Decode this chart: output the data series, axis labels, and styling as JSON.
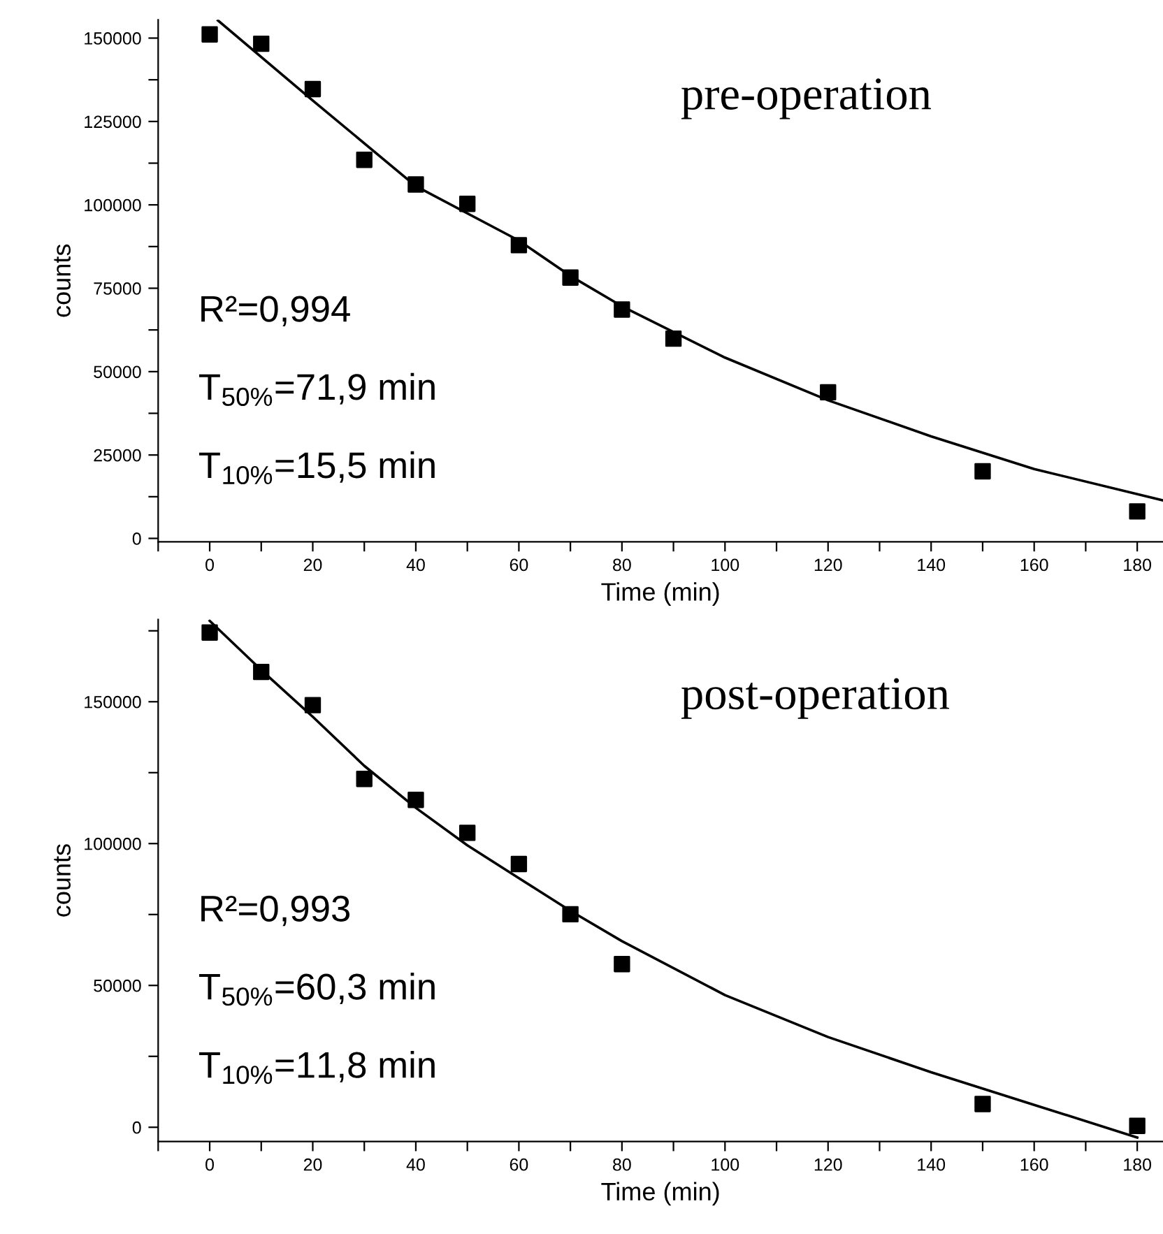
{
  "chart_data": [
    {
      "type": "scatter",
      "xlabel": "Time (min)",
      "ylabel": "counts",
      "xlim": [
        -10,
        185
      ],
      "ylim": [
        -1000,
        155500
      ],
      "xticks": [
        {
          "value": -10,
          "label": null
        },
        0,
        {
          "value": 10,
          "label": null
        },
        20,
        {
          "value": 30,
          "label": null
        },
        40,
        {
          "value": 50,
          "label": null
        },
        60,
        {
          "value": 70,
          "label": null
        },
        80,
        {
          "value": 90,
          "label": null
        },
        100,
        {
          "value": 110,
          "label": null
        },
        120,
        {
          "value": 130,
          "label": null
        },
        140,
        {
          "value": 150,
          "label": null
        },
        160,
        {
          "value": 170,
          "label": null
        },
        180
      ],
      "yticks": [
        0,
        {
          "value": 12500,
          "label": null
        },
        25000,
        {
          "value": 37500,
          "label": null
        },
        50000,
        {
          "value": 62500,
          "label": null
        },
        75000,
        {
          "value": 87500,
          "label": null
        },
        100000,
        {
          "value": 112500,
          "label": null
        },
        125000,
        {
          "value": 137500,
          "label": null
        },
        150000
      ],
      "annotations": [
        "pre-operation",
        "R²=0,994",
        "T$_{50%}$=71,9 min",
        "T$_{10%}$=15,5 min"
      ],
      "series": [
        {
          "marker": "square",
          "color": "#000000",
          "x": [
            0,
            10,
            20,
            30,
            40,
            50,
            60,
            70,
            80,
            90,
            120,
            150,
            180
          ],
          "values": [
            151100,
            148300,
            134700,
            113500,
            106100,
            100300,
            87900,
            78200,
            68600,
            59900,
            43800,
            20100,
            8100
          ]
        },
        {
          "type": "line",
          "marker": "none",
          "line_style": "solid",
          "color": "#000000",
          "x": [
            1.6,
            20,
            40,
            60,
            70,
            80,
            100,
            120,
            140,
            160,
            185
          ],
          "values": [
            155300,
            131300,
            105600,
            89300,
            78700,
            69600,
            54200,
            41400,
            30600,
            20800,
            11400
          ]
        }
      ]
    },
    {
      "type": "scatter",
      "xlabel": "Time (min)",
      "ylabel": "counts",
      "xlim": [
        -10,
        185
      ],
      "ylim": [
        -5000,
        179000
      ],
      "xticks": [
        {
          "value": -10,
          "label": null
        },
        0,
        {
          "value": 10,
          "label": null
        },
        20,
        {
          "value": 30,
          "label": null
        },
        40,
        {
          "value": 50,
          "label": null
        },
        60,
        {
          "value": 70,
          "label": null
        },
        80,
        {
          "value": 90,
          "label": null
        },
        100,
        {
          "value": 110,
          "label": null
        },
        120,
        {
          "value": 130,
          "label": null
        },
        140,
        {
          "value": 150,
          "label": null
        },
        160,
        {
          "value": 170,
          "label": null
        },
        180
      ],
      "yticks": [
        0,
        {
          "value": 25000,
          "label": null
        },
        50000,
        {
          "value": 75000,
          "label": null
        },
        100000,
        {
          "value": 125000,
          "label": null
        },
        150000,
        {
          "value": 175000,
          "label": null
        }
      ],
      "annotations": [
        "post-operation",
        "R²=0,993",
        "T$_{50%}$=60,3 min",
        "T$_{10%}$=11,8 min"
      ],
      "series": [
        {
          "marker": "square",
          "color": "#000000",
          "x": [
            0,
            10,
            20,
            30,
            40,
            50,
            60,
            70,
            80,
            150,
            180
          ],
          "values": [
            174400,
            160500,
            148800,
            122800,
            115400,
            103800,
            92800,
            75100,
            57500,
            8200,
            500
          ]
        },
        {
          "type": "line",
          "marker": "none",
          "line_style": "solid",
          "color": "#000000",
          "x": [
            0,
            10,
            20,
            30,
            40,
            50,
            60,
            70,
            80,
            100,
            120,
            140,
            160,
            180
          ],
          "values": [
            178500,
            161200,
            144700,
            127400,
            112600,
            99400,
            87800,
            76300,
            65600,
            46600,
            31800,
            19400,
            7900,
            -3600
          ]
        }
      ]
    }
  ]
}
